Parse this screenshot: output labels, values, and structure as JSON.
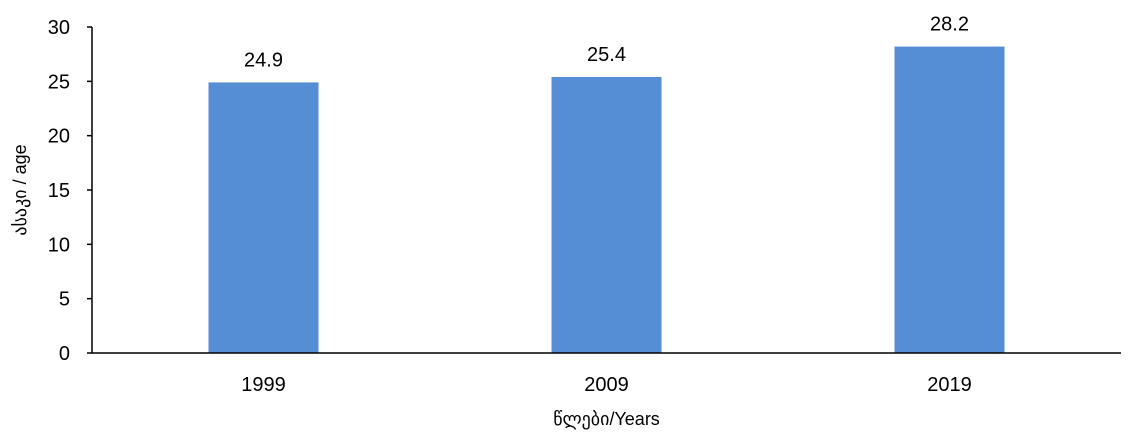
{
  "chart_data": {
    "type": "bar",
    "categories": [
      "1999",
      "2009",
      "2019"
    ],
    "values": [
      24.9,
      25.4,
      28.2
    ],
    "data_labels": [
      "24.9",
      "25.4",
      "28.2"
    ],
    "title": "",
    "xlabel": "წლები/Years",
    "ylabel": "ასაკი / age",
    "ylim": [
      0,
      30
    ],
    "yticks": [
      "0",
      "5",
      "10",
      "15",
      "20",
      "25",
      "30"
    ],
    "grid": false,
    "legend": "none",
    "bar_color": "#558ED5",
    "axis_color": "#000000"
  }
}
